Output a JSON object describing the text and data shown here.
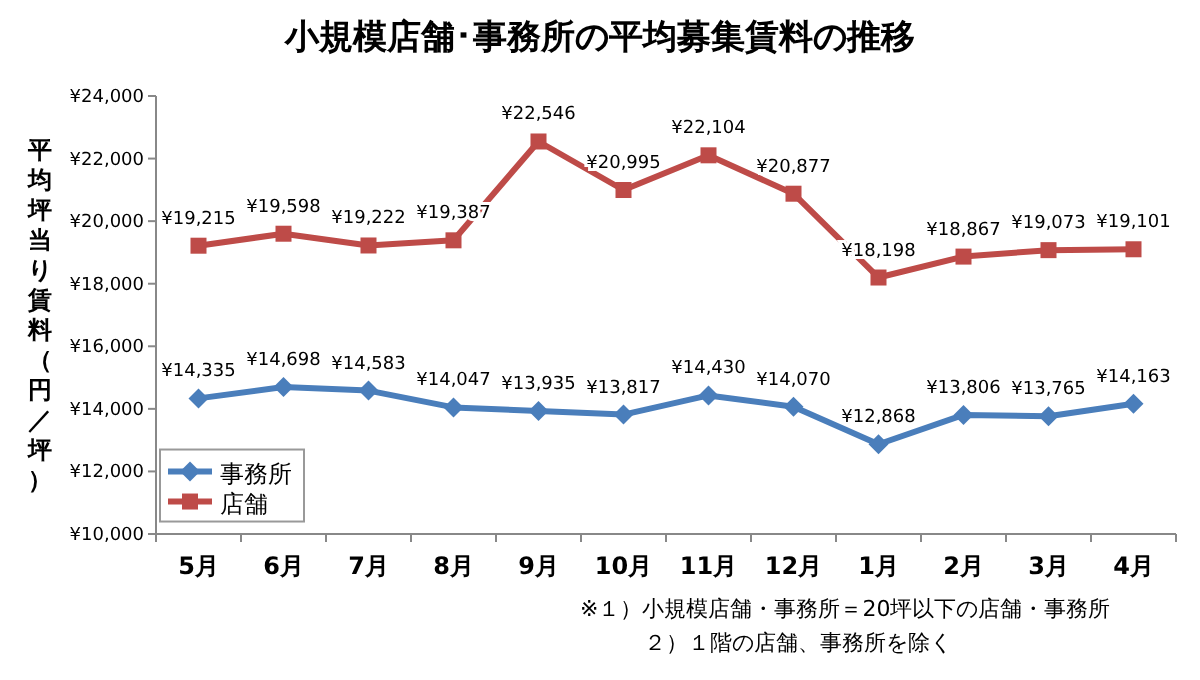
{
  "chart_data": {
    "type": "line",
    "title": "小規模店舗･事務所の平均募集賃料の推移",
    "ylabel": "平均坪当り賃料（円／坪）",
    "categories": [
      "5月",
      "6月",
      "7月",
      "8月",
      "9月",
      "10月",
      "11月",
      "12月",
      "1月",
      "2月",
      "3月",
      "4月"
    ],
    "series": [
      {
        "name": "事務所",
        "color": "#4a7ebb",
        "marker": "diamond",
        "values": [
          14335,
          14698,
          14583,
          14047,
          13935,
          13817,
          14430,
          14070,
          12868,
          13806,
          13765,
          14163
        ],
        "value_labels": [
          "¥14,335",
          "¥14,698",
          "¥14,583",
          "¥14,047",
          "¥13,935",
          "¥13,817",
          "¥14,430",
          "¥14,070",
          "¥12,868",
          "¥13,806",
          "¥13,765",
          "¥14,163"
        ]
      },
      {
        "name": "店舗",
        "color": "#be4b48",
        "marker": "square",
        "values": [
          19215,
          19598,
          19222,
          19387,
          22546,
          20995,
          22104,
          20877,
          18198,
          18867,
          19073,
          19101
        ],
        "value_labels": [
          "¥19,215",
          "¥19,598",
          "¥19,222",
          "¥19,387",
          "¥22,546",
          "¥20,995",
          "¥22,104",
          "¥20,877",
          "¥18,198",
          "¥18,867",
          "¥19,073",
          "¥19,101"
        ]
      }
    ],
    "ylim": [
      10000,
      24000
    ],
    "yticks": [
      {
        "value": 10000,
        "label": "¥10,000"
      },
      {
        "value": 12000,
        "label": "¥12,000"
      },
      {
        "value": 14000,
        "label": "¥14,000"
      },
      {
        "value": 16000,
        "label": "¥16,000"
      },
      {
        "value": 18000,
        "label": "¥18,000"
      },
      {
        "value": 20000,
        "label": "¥20,000"
      },
      {
        "value": 22000,
        "label": "¥22,000"
      },
      {
        "value": 24000,
        "label": "¥24,000"
      }
    ],
    "grid": false,
    "legend": "left",
    "line_style": "solid",
    "annotations": [
      "※１）小規模店舗・事務所＝20坪以下の店舗・事務所",
      "２）１階の店舗、事務所を除く"
    ]
  }
}
